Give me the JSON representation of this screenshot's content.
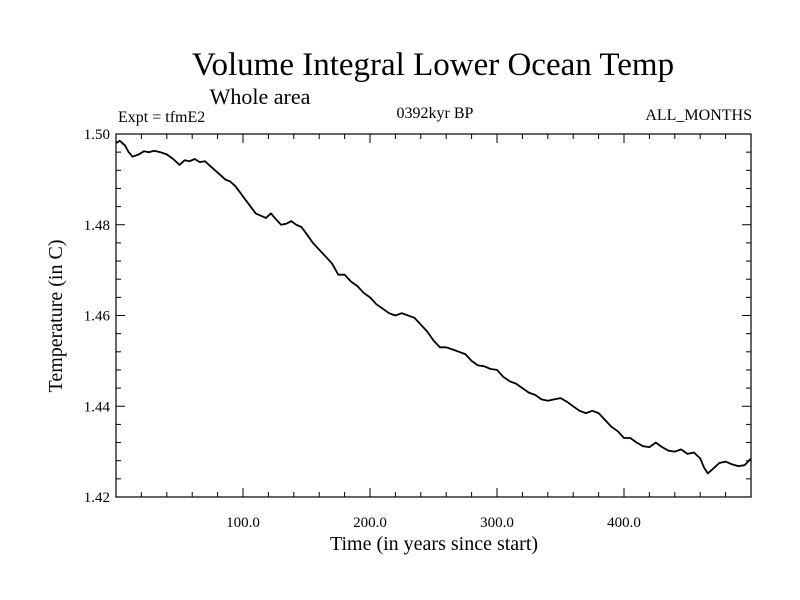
{
  "chart_data": {
    "type": "line",
    "title": "Volume Integral Lower Ocean Temp",
    "subtitle": "Whole area",
    "header_left": "Expt = tfmE2",
    "header_center": "0392kyr BP",
    "header_right": "ALL_MONTHS",
    "xlabel": "Time (in years since start)",
    "ylabel": "Temperature (in C)",
    "xlim": [
      0,
      500
    ],
    "ylim": [
      1.42,
      1.5
    ],
    "x_ticks": [
      100,
      200,
      300,
      400
    ],
    "x_tick_labels": [
      "100.0",
      "200.0",
      "300.0",
      "400.0"
    ],
    "y_ticks": [
      1.42,
      1.44,
      1.46,
      1.48,
      1.5
    ],
    "y_tick_labels": [
      "1.42",
      "1.44",
      "1.46",
      "1.48",
      "1.50"
    ],
    "grid": false,
    "line_color": "#000000",
    "series": [
      {
        "x": [
          0,
          3,
          7,
          10,
          13,
          18,
          22,
          26,
          30,
          35,
          40,
          45,
          50,
          54,
          58,
          62,
          66,
          70,
          74,
          78,
          82,
          86,
          90,
          94,
          98,
          102,
          106,
          110,
          114,
          118,
          122,
          126,
          130,
          134,
          138,
          142,
          146,
          150,
          155,
          160,
          165,
          170,
          175,
          180,
          185,
          190,
          195,
          200,
          205,
          210,
          215,
          220,
          225,
          230,
          235,
          240,
          245,
          250,
          255,
          260,
          265,
          270,
          275,
          280,
          285,
          290,
          295,
          300,
          305,
          310,
          315,
          320,
          325,
          330,
          335,
          340,
          345,
          350,
          355,
          360,
          365,
          370,
          375,
          380,
          385,
          390,
          395,
          400,
          405,
          410,
          415,
          420,
          425,
          430,
          435,
          440,
          445,
          450,
          455,
          460,
          463,
          466,
          470,
          475,
          480,
          485,
          490,
          495,
          500
        ],
        "y": [
          1.498,
          1.4985,
          1.4975,
          1.496,
          1.495,
          1.4955,
          1.4962,
          1.496,
          1.4963,
          1.496,
          1.4955,
          1.4945,
          1.4932,
          1.4942,
          1.494,
          1.4945,
          1.4938,
          1.494,
          1.493,
          1.492,
          1.491,
          1.49,
          1.4895,
          1.4885,
          1.487,
          1.4855,
          1.484,
          1.4825,
          1.482,
          1.4815,
          1.4825,
          1.4812,
          1.48,
          1.4802,
          1.4808,
          1.48,
          1.4795,
          1.478,
          1.476,
          1.4745,
          1.473,
          1.4715,
          1.469,
          1.469,
          1.4675,
          1.4665,
          1.465,
          1.464,
          1.4625,
          1.4615,
          1.4605,
          1.46,
          1.4605,
          1.46,
          1.4595,
          1.458,
          1.4565,
          1.4545,
          1.453,
          1.453,
          1.4525,
          1.452,
          1.4515,
          1.45,
          1.449,
          1.4488,
          1.4482,
          1.448,
          1.4465,
          1.4455,
          1.445,
          1.444,
          1.443,
          1.4425,
          1.4415,
          1.4412,
          1.4415,
          1.4418,
          1.441,
          1.44,
          1.439,
          1.4385,
          1.439,
          1.4385,
          1.437,
          1.4355,
          1.4345,
          1.433,
          1.433,
          1.432,
          1.4312,
          1.431,
          1.432,
          1.431,
          1.4302,
          1.43,
          1.4305,
          1.4295,
          1.4298,
          1.4285,
          1.4265,
          1.4252,
          1.4262,
          1.4275,
          1.4278,
          1.4272,
          1.4268,
          1.427,
          1.4285
        ]
      }
    ]
  }
}
